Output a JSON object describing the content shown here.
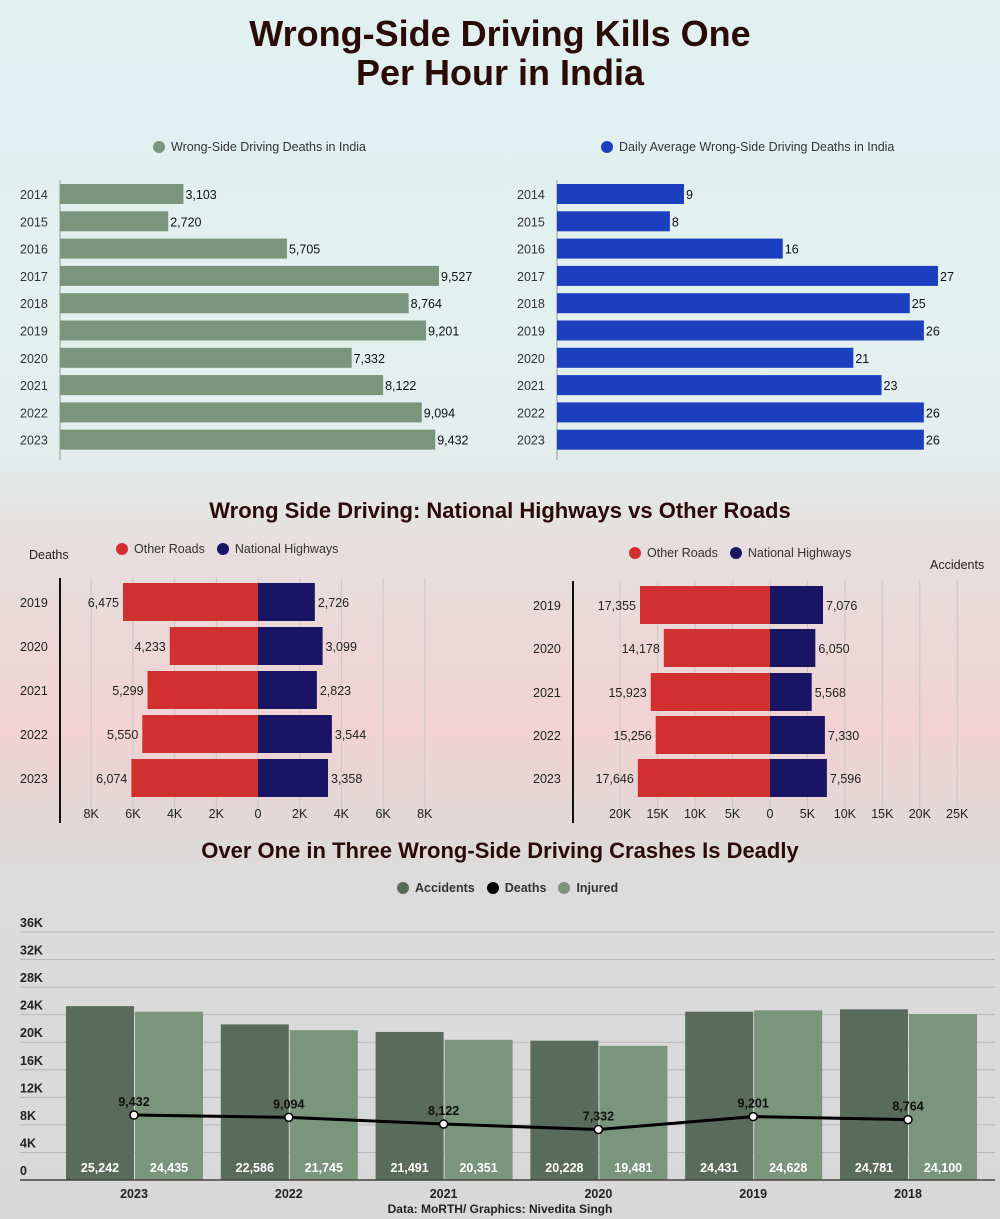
{
  "title_line1": "Wrong-Side Driving Kills One",
  "title_line2": "Per Hour in India",
  "section2_title": "Wrong Side Driving: National Highways vs Other Roads",
  "section3_title": "Over One in Three Wrong-Side Driving Crashes Is Deadly",
  "footer": "Data: MoRTH/ Graphics: Nivedita Singh",
  "colors": {
    "sage": "#7a957b",
    "blue": "#1c3fbf",
    "red": "#d03030",
    "navy": "#1a1464",
    "accidents": "#596b5a",
    "injured": "#7a957b",
    "deaths": "#000000"
  },
  "chart_data": [
    {
      "type": "bar",
      "orientation": "horizontal",
      "legend": "Wrong-Side Driving Deaths in India",
      "categories": [
        "2014",
        "2015",
        "2016",
        "2017",
        "2018",
        "2019",
        "2020",
        "2021",
        "2022",
        "2023"
      ],
      "values": [
        3103,
        2720,
        5705,
        9527,
        8764,
        9201,
        7332,
        8122,
        9094,
        9432
      ],
      "labels": [
        "3,103",
        "2,720",
        "5,705",
        "9,527",
        "8,764",
        "9,201",
        "7,332",
        "8,122",
        "9,094",
        "9,432"
      ]
    },
    {
      "type": "bar",
      "orientation": "horizontal",
      "legend": "Daily Average Wrong-Side Driving Deaths in India",
      "categories": [
        "2014",
        "2015",
        "2016",
        "2017",
        "2018",
        "2019",
        "2020",
        "2021",
        "2022",
        "2023"
      ],
      "values": [
        9,
        8,
        16,
        27,
        25,
        26,
        21,
        23,
        26,
        26
      ],
      "labels": [
        "9",
        "8",
        "16",
        "27",
        "25",
        "26",
        "21",
        "23",
        "26",
        "26"
      ]
    },
    {
      "type": "bar",
      "orientation": "diverging",
      "axis_title": "Deaths",
      "categories": [
        "2019",
        "2020",
        "2021",
        "2022",
        "2023"
      ],
      "series": [
        {
          "name": "Other Roads",
          "values": [
            6475,
            4233,
            5299,
            5550,
            6074
          ],
          "labels": [
            "6,475",
            "4,233",
            "5,299",
            "5,550",
            "6,074"
          ]
        },
        {
          "name": "National Highways",
          "values": [
            2726,
            3099,
            2823,
            3544,
            3358
          ],
          "labels": [
            "2,726",
            "3,099",
            "2,823",
            "3,544",
            "3,358"
          ]
        }
      ],
      "ticks": [
        -8000,
        -6000,
        -4000,
        -2000,
        0,
        2000,
        4000,
        6000,
        8000
      ],
      "tick_labels": [
        "8K",
        "6K",
        "4K",
        "2K",
        "0",
        "2K",
        "4K",
        "6K",
        "8K"
      ]
    },
    {
      "type": "bar",
      "orientation": "diverging",
      "axis_title": "Accidents",
      "categories": [
        "2019",
        "2020",
        "2021",
        "2022",
        "2023"
      ],
      "series": [
        {
          "name": "Other Roads",
          "values": [
            17355,
            14178,
            15923,
            15256,
            17646
          ],
          "labels": [
            "17,355",
            "14,178",
            "15,923",
            "15,256",
            "17,646"
          ]
        },
        {
          "name": "National Highways",
          "values": [
            7076,
            6050,
            5568,
            7330,
            7596
          ],
          "labels": [
            "7,076",
            "6,050",
            "5,568",
            "7,330",
            "7,596"
          ]
        }
      ],
      "ticks": [
        -20000,
        -15000,
        -10000,
        -5000,
        0,
        5000,
        10000,
        15000,
        20000,
        25000
      ],
      "tick_labels": [
        "20K",
        "15K",
        "10K",
        "5K",
        "0",
        "5K",
        "10K",
        "15K",
        "20K",
        "25K"
      ]
    },
    {
      "type": "bar",
      "subtype": "grouped bar + line",
      "categories": [
        "2023",
        "2022",
        "2021",
        "2020",
        "2019",
        "2018"
      ],
      "series": [
        {
          "name": "Accidents",
          "values": [
            25242,
            22586,
            21491,
            20228,
            24431,
            24781
          ],
          "labels": [
            "25,242",
            "22,586",
            "21,491",
            "20,228",
            "24,431",
            "24,781"
          ]
        },
        {
          "name": "Deaths",
          "type": "line",
          "values": [
            9432,
            9094,
            8122,
            7332,
            9201,
            8764
          ],
          "labels": [
            "9,432",
            "9,094",
            "8,122",
            "7,332",
            "9,201",
            "8,764"
          ]
        },
        {
          "name": "Injured",
          "values": [
            24435,
            21745,
            20351,
            19481,
            24628,
            24100
          ],
          "labels": [
            "24,435",
            "21,745",
            "20,351",
            "19,481",
            "24,628",
            "24,100"
          ]
        }
      ],
      "ylim": [
        0,
        36000
      ],
      "yticks": [
        0,
        4000,
        8000,
        12000,
        16000,
        20000,
        24000,
        28000,
        32000,
        36000
      ],
      "ytick_labels": [
        "0",
        "4K",
        "8K",
        "12K",
        "16K",
        "20K",
        "24K",
        "28K",
        "32K",
        "36K"
      ]
    }
  ]
}
